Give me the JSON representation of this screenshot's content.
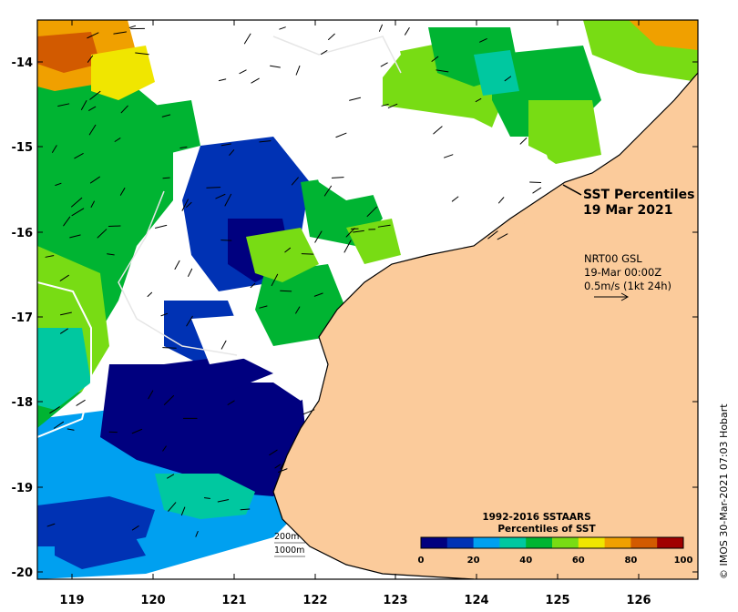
{
  "map": {
    "title_line1": "SST Percentiles",
    "title_line2": "19 Mar 2021",
    "current_source": "NRT00 GSL",
    "current_time": "19-Mar 00:00Z",
    "current_scale": "0.5m/s (1kt 24h)",
    "scale_bar_1": "200m",
    "scale_bar_2": "1000m",
    "credit": "© IMOS 30-Mar-2021 07:03 Hobart",
    "land_color": "#fbcb9b",
    "lon_ticks": [
      "119",
      "120",
      "121",
      "122",
      "123",
      "124",
      "125",
      "126"
    ],
    "lat_ticks": [
      "-14",
      "-15",
      "-16",
      "-17",
      "-18",
      "-19",
      "-20"
    ]
  },
  "colorbar": {
    "title_line1": "1992-2016 SSTAARS",
    "title_line2": "Percentiles of SST",
    "ticks": [
      "0",
      "20",
      "40",
      "60",
      "80",
      "100"
    ],
    "colors": [
      "#00007f",
      "#0032b4",
      "#00a0f0",
      "#00c8a0",
      "#00b432",
      "#78dc14",
      "#f0e600",
      "#f0a000",
      "#d25a00",
      "#a00000"
    ]
  }
}
